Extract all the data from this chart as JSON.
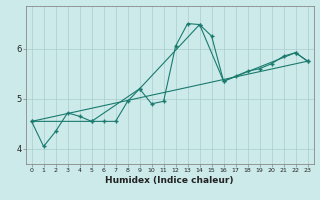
{
  "xlabel": "Humidex (Indice chaleur)",
  "bg_color": "#cceaea",
  "line_color": "#1a7a6e",
  "grid_color": "#aacccc",
  "xlim": [
    -0.5,
    23.5
  ],
  "ylim": [
    3.7,
    6.85
  ],
  "yticks": [
    4,
    5,
    6
  ],
  "xticks": [
    0,
    1,
    2,
    3,
    4,
    5,
    6,
    7,
    8,
    9,
    10,
    11,
    12,
    13,
    14,
    15,
    16,
    17,
    18,
    19,
    20,
    21,
    22,
    23
  ],
  "series1": [
    [
      0,
      4.55
    ],
    [
      1,
      4.05
    ],
    [
      2,
      4.35
    ],
    [
      3,
      4.72
    ],
    [
      4,
      4.65
    ],
    [
      5,
      4.55
    ],
    [
      6,
      4.55
    ],
    [
      7,
      4.55
    ],
    [
      8,
      4.95
    ],
    [
      9,
      5.2
    ],
    [
      10,
      4.9
    ],
    [
      11,
      4.95
    ],
    [
      12,
      6.05
    ],
    [
      13,
      6.5
    ],
    [
      14,
      6.48
    ],
    [
      15,
      6.25
    ],
    [
      16,
      5.35
    ],
    [
      17,
      5.45
    ],
    [
      18,
      5.55
    ],
    [
      19,
      5.6
    ],
    [
      20,
      5.7
    ],
    [
      21,
      5.85
    ],
    [
      22,
      5.92
    ],
    [
      23,
      5.75
    ]
  ],
  "series2": [
    [
      0,
      4.55
    ],
    [
      5,
      4.55
    ],
    [
      9,
      5.2
    ],
    [
      14,
      6.48
    ],
    [
      16,
      5.35
    ],
    [
      22,
      5.92
    ],
    [
      23,
      5.75
    ]
  ],
  "series3": [
    [
      0,
      4.55
    ],
    [
      23,
      5.75
    ]
  ]
}
